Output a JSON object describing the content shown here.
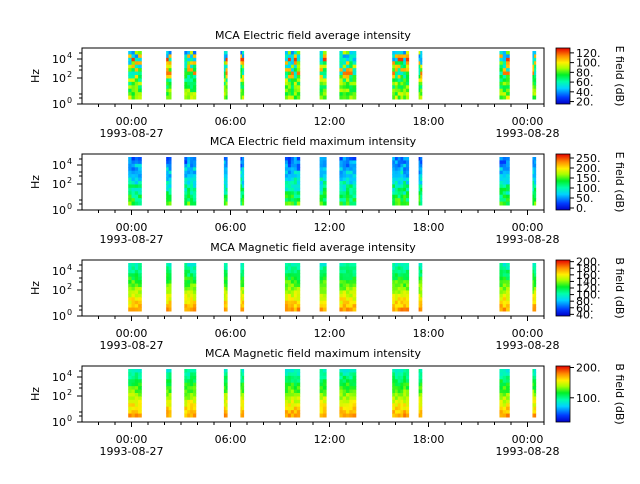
{
  "chart_data": [
    {
      "type": "heatmap",
      "title": "MCA  Electric field average intensity",
      "ylabel": "Hz",
      "colorbar_label": "E field (dB)",
      "colorbar_ticks": [
        "20.",
        "40.",
        "60.",
        "80.",
        "100.",
        "120."
      ],
      "colorbar_range": [
        15,
        130
      ],
      "dominant_level": 0.45,
      "bursts": [
        [
          0.05,
          0.15,
          0.95
        ],
        [
          0.85,
          0.45,
          0.9
        ]
      ]
    },
    {
      "type": "heatmap",
      "title": "MCA  Electric field maximum intensity",
      "ylabel": "Hz",
      "colorbar_label": "E field (dB)",
      "colorbar_ticks": [
        "0.",
        "50.",
        "100.",
        "150.",
        "200.",
        "250."
      ],
      "colorbar_range": [
        -10,
        270
      ],
      "dominant_level": 0.35,
      "bursts": [
        [
          0.3,
          0.2,
          0.2
        ],
        [
          0.7,
          0.3,
          0.25
        ]
      ]
    },
    {
      "type": "heatmap",
      "title": "MCA  Magnetic field average intensity",
      "ylabel": "Hz",
      "colorbar_label": "B field (dB)",
      "colorbar_ticks": [
        "40.",
        "60.",
        "80.",
        "100.",
        "120.",
        "140.",
        "160.",
        "180.",
        "200."
      ],
      "colorbar_range": [
        35,
        205
      ],
      "dominant_level": 0.55,
      "bursts": [
        [
          0.1,
          0.8,
          0.6
        ]
      ]
    },
    {
      "type": "heatmap",
      "title": "MCA  Magnetic field maximum intensity",
      "ylabel": "Hz",
      "colorbar_label": "B field (dB)",
      "colorbar_ticks": [
        "100.",
        "200."
      ],
      "colorbar_range": [
        20,
        205
      ],
      "dominant_level": 0.55,
      "bursts": [
        [
          0.1,
          0.85,
          0.7
        ]
      ]
    }
  ],
  "x_axis": {
    "ticks": [
      {
        "time": "00:00",
        "date": "1993-08-27"
      },
      {
        "time": "06:00",
        "date": ""
      },
      {
        "time": "12:00",
        "date": ""
      },
      {
        "time": "18:00",
        "date": ""
      },
      {
        "time": "00:00",
        "date": "1993-08-28"
      }
    ],
    "start_hour": -3,
    "end_hour": 25
  },
  "y_axis": {
    "tick_exponents": [
      "0",
      "2",
      "4"
    ],
    "tick_base": "10"
  },
  "data_intervals_hours": [
    [
      -0.2,
      0.6
    ],
    [
      2.1,
      2.4
    ],
    [
      3.2,
      3.9
    ],
    [
      5.6,
      5.8
    ],
    [
      6.6,
      6.8
    ],
    [
      9.3,
      10.2
    ],
    [
      11.4,
      11.8
    ],
    [
      12.6,
      13.6
    ],
    [
      15.8,
      16.8
    ],
    [
      17.4,
      17.6
    ],
    [
      22.3,
      22.9
    ],
    [
      24.3,
      24.5
    ]
  ],
  "colors": {
    "background": "#ffffff",
    "axis": "#000000",
    "blank": "#ffffff"
  }
}
